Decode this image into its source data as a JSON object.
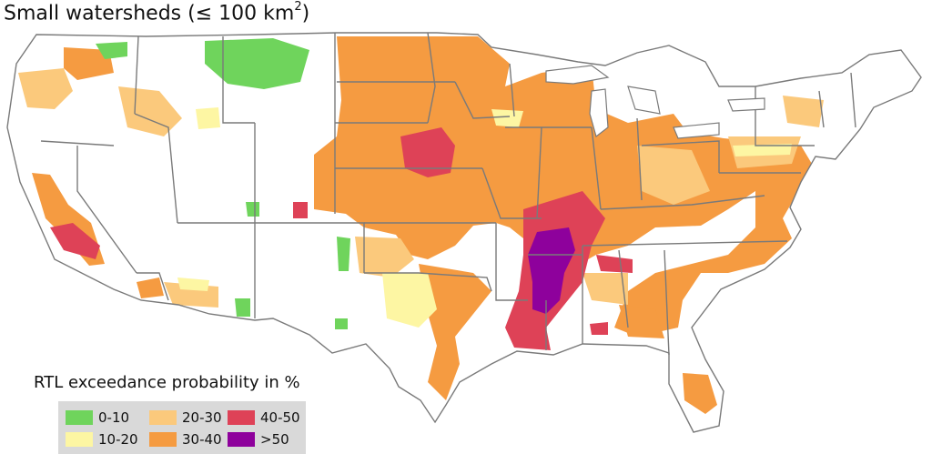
{
  "title": {
    "prefix": "Small watersheds (≤ 100 km",
    "superscript": "2",
    "suffix": ")"
  },
  "legend": {
    "title": "RTL exceedance probability in %",
    "items": [
      {
        "label": "0-10",
        "color": "#6fd45c"
      },
      {
        "label": "10-20",
        "color": "#fdf6a3"
      },
      {
        "label": "20-30",
        "color": "#fbc97c"
      },
      {
        "label": "30-40",
        "color": "#f59b41"
      },
      {
        "label": "40-50",
        "color": "#de4257"
      },
      {
        "label": ">50",
        "color": "#8e019c"
      }
    ]
  }
}
